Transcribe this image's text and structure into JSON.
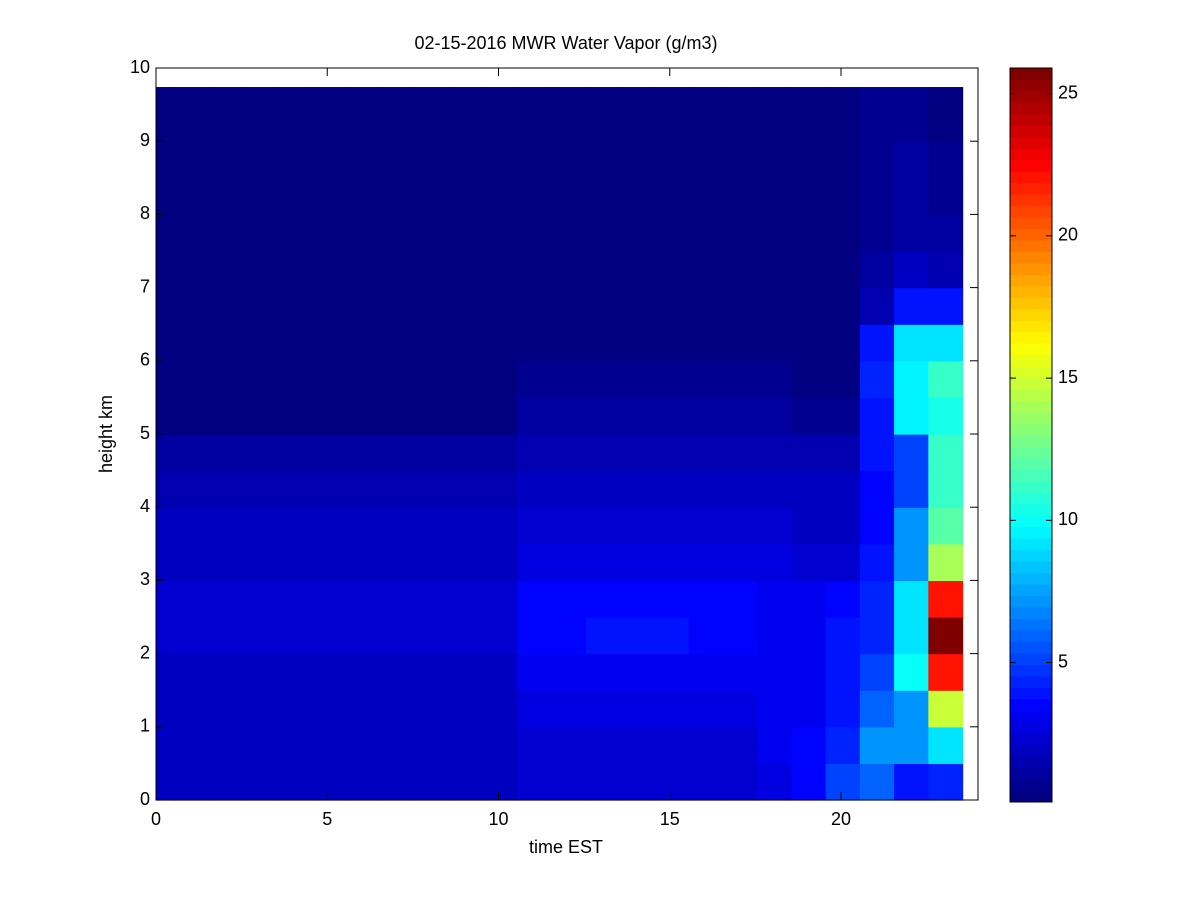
{
  "chart_data": {
    "type": "heatmap",
    "title": "02-15-2016 MWR Water Vapor (g/m3)",
    "x_label": "time EST",
    "y_label": "height km",
    "colormap": "jet",
    "xlim": [
      0,
      24
    ],
    "ylim": [
      0,
      10
    ],
    "xticks": [
      0,
      5,
      10,
      15,
      20
    ],
    "yticks": [
      0,
      1,
      2,
      3,
      4,
      5,
      6,
      7,
      8,
      9,
      10
    ],
    "clim": [
      0.1,
      25.9
    ],
    "cticks": [
      5,
      10,
      15,
      20,
      25
    ],
    "x_bins": [
      0,
      0.55,
      1.55,
      2.55,
      3.55,
      4.55,
      5.55,
      6.55,
      7.55,
      8.55,
      9.55,
      10.55,
      11.55,
      12.55,
      13.55,
      14.55,
      15.55,
      16.55,
      17.55,
      18.55,
      19.55,
      20.55,
      21.55,
      22.55,
      23.55
    ],
    "y_bins": [
      0,
      0.5,
      1,
      1.5,
      2,
      2.5,
      3,
      3.5,
      4,
      4.5,
      5,
      5.5,
      6,
      6.5,
      7,
      7.5,
      8,
      8.5,
      9,
      9.5,
      9.74
    ],
    "values": [
      [
        1.8,
        1.8,
        1.8,
        1.8,
        1.8,
        1.8,
        1.8,
        1.8,
        1.8,
        1.8,
        1.8,
        2.3,
        2.3,
        2.3,
        2.3,
        2.3,
        2.3,
        2.3,
        2.8,
        3.5,
        5,
        6,
        4,
        4.5
      ],
      [
        1.8,
        1.8,
        1.8,
        1.8,
        1.8,
        1.8,
        1.8,
        1.8,
        1.8,
        1.8,
        1.8,
        2.4,
        2.4,
        2.4,
        2.4,
        2.4,
        2.4,
        2.4,
        3,
        3.5,
        4.5,
        7,
        7,
        9
      ],
      [
        1.8,
        1.8,
        1.8,
        1.8,
        1.8,
        1.8,
        1.8,
        1.8,
        1.8,
        1.8,
        1.8,
        2.8,
        2.8,
        2.8,
        2.8,
        2.8,
        2.8,
        2.8,
        3,
        3.3,
        4,
        6,
        7,
        15
      ],
      [
        1.8,
        1.8,
        1.8,
        1.8,
        1.8,
        1.8,
        1.8,
        1.8,
        1.8,
        1.8,
        1.8,
        3.2,
        3.2,
        3.2,
        3.2,
        3.2,
        3.2,
        3.2,
        3.2,
        3.2,
        4,
        5,
        10,
        22
      ],
      [
        2.2,
        2.2,
        2.2,
        2.2,
        2.2,
        2.2,
        2.2,
        2.2,
        2.5,
        2.5,
        2.5,
        3.6,
        3.6,
        3.8,
        3.8,
        3.8,
        3.6,
        3.6,
        3.3,
        3.3,
        3.8,
        4.5,
        9,
        25.5
      ],
      [
        2.2,
        2.2,
        2.2,
        2.2,
        2.2,
        2.2,
        2.2,
        2.2,
        2.5,
        2.5,
        2.5,
        3.4,
        3.4,
        3.6,
        3.6,
        3.6,
        3.4,
        3.4,
        3,
        3.2,
        3.5,
        4.5,
        9,
        22
      ],
      [
        2,
        2,
        2,
        2,
        2,
        2,
        2,
        2,
        2,
        2,
        2,
        2.9,
        2.9,
        2.9,
        2.9,
        2.9,
        2.9,
        2.9,
        2.6,
        2.2,
        2.2,
        4,
        7,
        14
      ],
      [
        1.8,
        1.8,
        1.8,
        1.8,
        1.8,
        1.8,
        1.8,
        1.8,
        1.8,
        1.8,
        1.8,
        2.4,
        2.4,
        2.4,
        2.4,
        2.4,
        2.4,
        2.4,
        2.2,
        2,
        2,
        3.5,
        7,
        12
      ],
      [
        1.5,
        1.5,
        1.5,
        1.5,
        1.5,
        1.5,
        1.5,
        1.5,
        1.5,
        1.5,
        1.5,
        1.9,
        1.9,
        1.9,
        1.9,
        1.9,
        1.9,
        1.9,
        1.8,
        1.8,
        1.8,
        3.5,
        5,
        11
      ],
      [
        1.3,
        1.3,
        1.3,
        1.3,
        1.3,
        1.3,
        1.3,
        1.3,
        1.3,
        1.3,
        1.3,
        1.6,
        1.6,
        1.6,
        1.6,
        1.6,
        1.6,
        1.6,
        1.5,
        1.5,
        1.5,
        4,
        5,
        11
      ],
      [
        0.5,
        0.5,
        0.5,
        0.5,
        0.5,
        0.5,
        0.5,
        0.5,
        0.5,
        0.5,
        0.5,
        1.1,
        1.1,
        1.1,
        1.1,
        1.1,
        1.1,
        1.1,
        1,
        0.8,
        0.7,
        4,
        9.5,
        10.5
      ],
      [
        0.4,
        0.4,
        0.4,
        0.4,
        0.4,
        0.4,
        0.4,
        0.4,
        0.4,
        0.4,
        0.4,
        0.7,
        0.7,
        0.7,
        0.7,
        0.7,
        0.7,
        0.7,
        0.8,
        0.5,
        0.5,
        4.5,
        9.5,
        11
      ],
      [
        0.4,
        0.4,
        0.4,
        0.4,
        0.4,
        0.4,
        0.4,
        0.4,
        0.4,
        0.4,
        0.4,
        0.5,
        0.5,
        0.5,
        0.5,
        0.5,
        0.5,
        0.5,
        0.5,
        0.5,
        0.5,
        4,
        9,
        9
      ],
      [
        0.4,
        0.4,
        0.4,
        0.4,
        0.4,
        0.4,
        0.4,
        0.4,
        0.4,
        0.4,
        0.4,
        0.5,
        0.5,
        0.5,
        0.5,
        0.5,
        0.5,
        0.5,
        0.5,
        0.5,
        0.5,
        1.5,
        4,
        4
      ],
      [
        0.4,
        0.4,
        0.4,
        0.4,
        0.4,
        0.4,
        0.4,
        0.4,
        0.4,
        0.4,
        0.4,
        0.5,
        0.5,
        0.5,
        0.5,
        0.5,
        0.5,
        0.5,
        0.5,
        0.5,
        0.5,
        1,
        2,
        1.5
      ],
      [
        0.4,
        0.4,
        0.4,
        0.4,
        0.4,
        0.4,
        0.4,
        0.4,
        0.4,
        0.4,
        0.4,
        0.5,
        0.5,
        0.5,
        0.5,
        0.5,
        0.5,
        0.5,
        0.5,
        0.5,
        0.5,
        0.6,
        1.2,
        1
      ],
      [
        0.4,
        0.4,
        0.4,
        0.4,
        0.4,
        0.4,
        0.4,
        0.4,
        0.4,
        0.4,
        0.4,
        0.5,
        0.5,
        0.5,
        0.5,
        0.5,
        0.5,
        0.5,
        0.5,
        0.5,
        0.5,
        0.6,
        1.2,
        0.8
      ],
      [
        0.4,
        0.4,
        0.4,
        0.4,
        0.4,
        0.4,
        0.4,
        0.4,
        0.4,
        0.4,
        0.4,
        0.5,
        0.5,
        0.5,
        0.5,
        0.5,
        0.5,
        0.5,
        0.5,
        0.5,
        0.5,
        0.6,
        1.2,
        0.6
      ],
      [
        0.4,
        0.4,
        0.4,
        0.4,
        0.4,
        0.4,
        0.4,
        0.4,
        0.4,
        0.4,
        0.4,
        0.5,
        0.5,
        0.5,
        0.5,
        0.5,
        0.5,
        0.5,
        0.5,
        0.5,
        0.5,
        0.6,
        0.8,
        0.5
      ],
      [
        0.4,
        0.4,
        0.4,
        0.4,
        0.4,
        0.4,
        0.4,
        0.4,
        0.4,
        0.4,
        0.4,
        0.5,
        0.5,
        0.5,
        0.5,
        0.5,
        0.5,
        0.5,
        0.5,
        0.5,
        0.5,
        0.6,
        0.8,
        0.5
      ]
    ]
  }
}
